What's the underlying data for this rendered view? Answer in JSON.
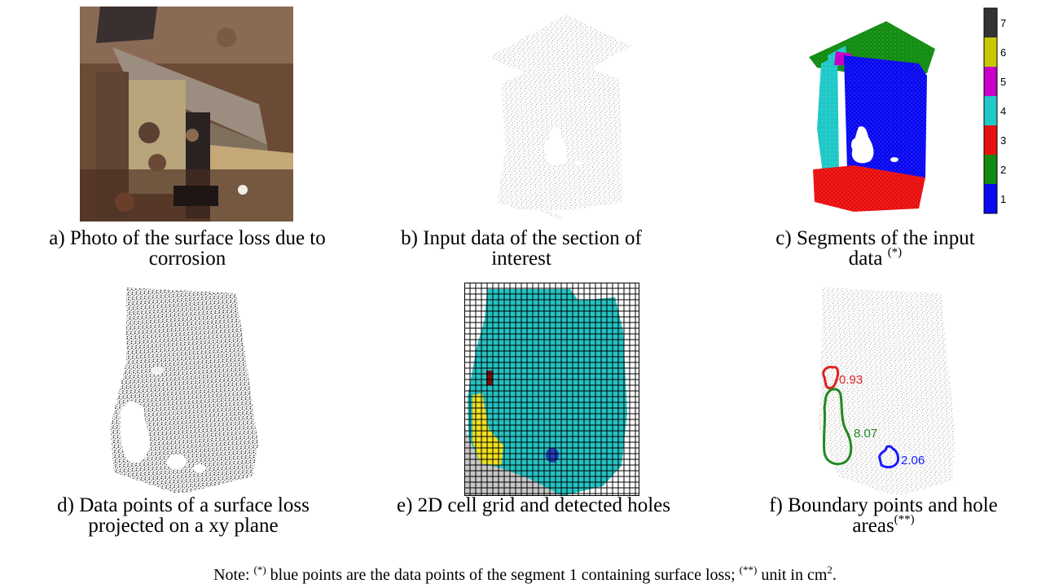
{
  "captions": {
    "a": {
      "line1": "a) Photo of the surface loss due to",
      "line2": "corrosion"
    },
    "b": {
      "line1": "b) Input data of the section of",
      "line2": "interest"
    },
    "c": {
      "line1": "c) Segments of the input",
      "line2": "data ",
      "sup": "(*)"
    },
    "d": {
      "line1": "d) Data points of a surface loss",
      "line2": "projected on a xy plane"
    },
    "e": {
      "line1": "e) 2D cell grid and detected holes"
    },
    "f": {
      "line1": "f) Boundary points and hole",
      "line2": "areas",
      "sup": "(**)"
    }
  },
  "colorbar": {
    "labels": [
      "7",
      "6",
      "5",
      "4",
      "3",
      "2",
      "1"
    ],
    "colors": [
      "#333333",
      "#c8c800",
      "#c800c8",
      "#20c8c8",
      "#e81010",
      "#108a10",
      "#0a0af0"
    ]
  },
  "hole_areas": [
    {
      "value": "0.93",
      "color": "#e02020"
    },
    {
      "value": "8.07",
      "color": "#208a20"
    },
    {
      "value": "2.06",
      "color": "#1a1aff"
    }
  ],
  "note": {
    "prefix": "Note: ",
    "sup1": "(*)",
    "text1": " blue points are the data points of the segment 1 containing surface loss; ",
    "sup2": "(**)",
    "text2": " unit in cm",
    "sup3": "2",
    "text3": "."
  }
}
